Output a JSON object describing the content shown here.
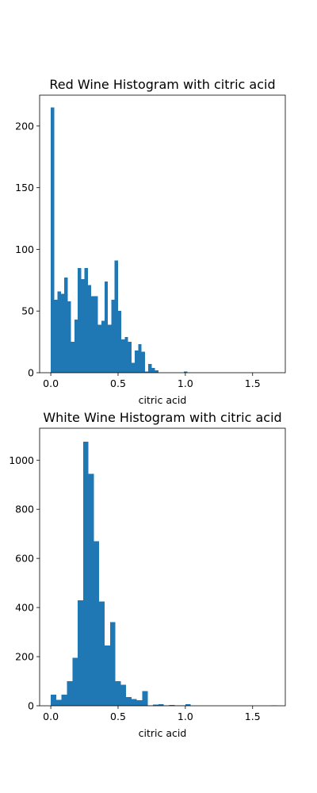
{
  "chart_data": [
    {
      "type": "histogram",
      "title": "Red Wine Histogram with citric acid",
      "xlabel": "citric acid",
      "ylabel": "",
      "xlim": [
        -0.083,
        1.743
      ],
      "ylim": [
        0,
        225
      ],
      "xticks": [
        0.0,
        0.5,
        1.0,
        1.5
      ],
      "xtick_labels": [
        "0.0",
        "0.5",
        "1.0",
        "1.5"
      ],
      "yticks": [
        0,
        50,
        100,
        150,
        200
      ],
      "ytick_labels": [
        "0",
        "50",
        "100",
        "150",
        "200"
      ],
      "bar_color": "#1f77b4",
      "bins": [
        {
          "x0": 0.0,
          "x1": 0.025,
          "count": 215
        },
        {
          "x0": 0.025,
          "x1": 0.05,
          "count": 59
        },
        {
          "x0": 0.05,
          "x1": 0.075,
          "count": 66
        },
        {
          "x0": 0.075,
          "x1": 0.1,
          "count": 64
        },
        {
          "x0": 0.1,
          "x1": 0.125,
          "count": 77
        },
        {
          "x0": 0.125,
          "x1": 0.15,
          "count": 58
        },
        {
          "x0": 0.15,
          "x1": 0.175,
          "count": 25
        },
        {
          "x0": 0.175,
          "x1": 0.2,
          "count": 43
        },
        {
          "x0": 0.2,
          "x1": 0.225,
          "count": 85
        },
        {
          "x0": 0.225,
          "x1": 0.25,
          "count": 76
        },
        {
          "x0": 0.25,
          "x1": 0.275,
          "count": 85
        },
        {
          "x0": 0.275,
          "x1": 0.3,
          "count": 71
        },
        {
          "x0": 0.3,
          "x1": 0.325,
          "count": 62
        },
        {
          "x0": 0.325,
          "x1": 0.35,
          "count": 62
        },
        {
          "x0": 0.35,
          "x1": 0.375,
          "count": 39
        },
        {
          "x0": 0.375,
          "x1": 0.4,
          "count": 42
        },
        {
          "x0": 0.4,
          "x1": 0.425,
          "count": 74
        },
        {
          "x0": 0.425,
          "x1": 0.45,
          "count": 39
        },
        {
          "x0": 0.45,
          "x1": 0.475,
          "count": 59
        },
        {
          "x0": 0.475,
          "x1": 0.5,
          "count": 91
        },
        {
          "x0": 0.5,
          "x1": 0.525,
          "count": 50
        },
        {
          "x0": 0.525,
          "x1": 0.55,
          "count": 27
        },
        {
          "x0": 0.55,
          "x1": 0.575,
          "count": 29
        },
        {
          "x0": 0.575,
          "x1": 0.6,
          "count": 25
        },
        {
          "x0": 0.6,
          "x1": 0.625,
          "count": 8
        },
        {
          "x0": 0.625,
          "x1": 0.65,
          "count": 18
        },
        {
          "x0": 0.65,
          "x1": 0.675,
          "count": 23
        },
        {
          "x0": 0.675,
          "x1": 0.7,
          "count": 17
        },
        {
          "x0": 0.7,
          "x1": 0.725,
          "count": 1
        },
        {
          "x0": 0.725,
          "x1": 0.75,
          "count": 7
        },
        {
          "x0": 0.75,
          "x1": 0.775,
          "count": 4
        },
        {
          "x0": 0.775,
          "x1": 0.8,
          "count": 2
        },
        {
          "x0": 0.99,
          "x1": 1.015,
          "count": 1
        }
      ]
    },
    {
      "type": "histogram",
      "title": "White Wine Histogram with citric acid",
      "xlabel": "citric acid",
      "ylabel": "",
      "xlim": [
        -0.083,
        1.743
      ],
      "ylim": [
        0,
        1130
      ],
      "xticks": [
        0.0,
        0.5,
        1.0,
        1.5
      ],
      "xtick_labels": [
        "0.0",
        "0.5",
        "1.0",
        "1.5"
      ],
      "yticks": [
        0,
        200,
        400,
        600,
        800,
        1000
      ],
      "ytick_labels": [
        "0",
        "200",
        "400",
        "600",
        "800",
        "1000"
      ],
      "bar_color": "#1f77b4",
      "bins": [
        {
          "x0": 0.0,
          "x1": 0.04,
          "count": 45
        },
        {
          "x0": 0.04,
          "x1": 0.08,
          "count": 25
        },
        {
          "x0": 0.08,
          "x1": 0.12,
          "count": 45
        },
        {
          "x0": 0.12,
          "x1": 0.16,
          "count": 100
        },
        {
          "x0": 0.16,
          "x1": 0.2,
          "count": 195
        },
        {
          "x0": 0.2,
          "x1": 0.24,
          "count": 430
        },
        {
          "x0": 0.24,
          "x1": 0.28,
          "count": 1075
        },
        {
          "x0": 0.28,
          "x1": 0.32,
          "count": 945
        },
        {
          "x0": 0.32,
          "x1": 0.36,
          "count": 670
        },
        {
          "x0": 0.36,
          "x1": 0.4,
          "count": 425
        },
        {
          "x0": 0.4,
          "x1": 0.44,
          "count": 245
        },
        {
          "x0": 0.44,
          "x1": 0.48,
          "count": 340
        },
        {
          "x0": 0.48,
          "x1": 0.52,
          "count": 100
        },
        {
          "x0": 0.52,
          "x1": 0.56,
          "count": 85
        },
        {
          "x0": 0.56,
          "x1": 0.6,
          "count": 35
        },
        {
          "x0": 0.6,
          "x1": 0.64,
          "count": 27
        },
        {
          "x0": 0.64,
          "x1": 0.68,
          "count": 22
        },
        {
          "x0": 0.68,
          "x1": 0.72,
          "count": 60
        },
        {
          "x0": 0.72,
          "x1": 0.76,
          "count": 2
        },
        {
          "x0": 0.76,
          "x1": 0.8,
          "count": 5
        },
        {
          "x0": 0.8,
          "x1": 0.84,
          "count": 6
        },
        {
          "x0": 0.84,
          "x1": 0.88,
          "count": 1
        },
        {
          "x0": 0.88,
          "x1": 0.92,
          "count": 3
        },
        {
          "x0": 0.92,
          "x1": 0.96,
          "count": 1
        },
        {
          "x0": 0.96,
          "x1": 1.0,
          "count": 2
        },
        {
          "x0": 1.0,
          "x1": 1.04,
          "count": 6
        },
        {
          "x0": 1.64,
          "x1": 1.68,
          "count": 1
        }
      ]
    }
  ]
}
